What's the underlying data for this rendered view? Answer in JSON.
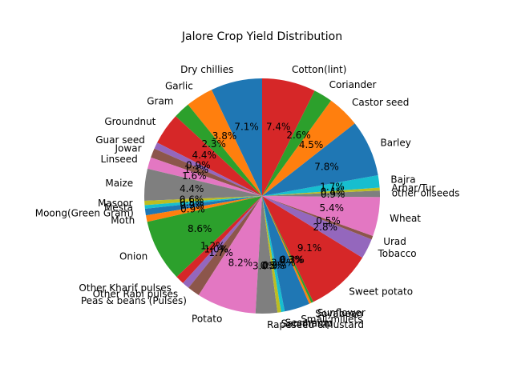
{
  "chart_data": {
    "type": "pie",
    "title": "Jalore Crop Yield Distribution",
    "start_angle_deg": 90,
    "direction": "counterclockwise",
    "palette": [
      "#1f77b4",
      "#ff7f0e",
      "#2ca02c",
      "#d62728",
      "#9467bd",
      "#8c564b",
      "#e377c2",
      "#7f7f7f",
      "#bcbd22",
      "#17becf"
    ],
    "slices": [
      {
        "label": "Dry chillies",
        "value": 7.1,
        "pct_label": "7.1%"
      },
      {
        "label": "Garlic",
        "value": 3.8,
        "pct_label": "3.8%"
      },
      {
        "label": "Gram",
        "value": 2.3,
        "pct_label": "2.3%"
      },
      {
        "label": "Groundnut",
        "value": 4.4,
        "pct_label": "4.4%"
      },
      {
        "label": "Guar seed",
        "value": 0.9,
        "pct_label": "0.9%"
      },
      {
        "label": "Jowar",
        "value": 1.3,
        "pct_label": "1.3%"
      },
      {
        "label": "Linseed",
        "value": 1.6,
        "pct_label": "1.6%"
      },
      {
        "label": "Maize",
        "value": 4.4,
        "pct_label": "4.4%"
      },
      {
        "label": "Masoor",
        "value": 0.6,
        "pct_label": "0.6%"
      },
      {
        "label": "Mesta",
        "value": 0.5,
        "pct_label": "0.5%"
      },
      {
        "label": "Moong(Green Gram)",
        "value": 0.9,
        "pct_label": "0.9%"
      },
      {
        "label": "Moth",
        "value": 0.9,
        "pct_label": "0.9%"
      },
      {
        "label": "Onion",
        "value": 8.6,
        "pct_label": "8.6%"
      },
      {
        "label": "Other Kharif pulses",
        "value": 1.2,
        "pct_label": "1.2%"
      },
      {
        "label": "Other Rabi pulses",
        "value": 1.0,
        "pct_label": "1.0%"
      },
      {
        "label": "Peas & beans (Pulses)",
        "value": 1.7,
        "pct_label": "1.7%"
      },
      {
        "label": "Potato",
        "value": 8.2,
        "pct_label": "8.2%"
      },
      {
        "label": "Rapeseed &Mustard",
        "value": 3.0,
        "pct_label": "3.0%"
      },
      {
        "label": "Sannhamp",
        "value": 0.5,
        "pct_label": "0.5%"
      },
      {
        "label": "Sesamum",
        "value": 0.5,
        "pct_label": "0.5%"
      },
      {
        "label": "Small millets",
        "value": 3.5,
        "pct_label": "3.5%"
      },
      {
        "label": "Soyabean",
        "value": 0.3,
        "pct_label": "0.3%"
      },
      {
        "label": "Sunflower",
        "value": 0.3,
        "pct_label": "0.3%"
      },
      {
        "label": "Sweet potato",
        "value": 9.1,
        "pct_label": "9.1%"
      },
      {
        "label": "Tobacco",
        "value": 2.8,
        "pct_label": "2.8%"
      },
      {
        "label": "Urad",
        "value": 0.5,
        "pct_label": "0.5%"
      },
      {
        "label": "Wheat",
        "value": 5.4,
        "pct_label": "5.4%"
      },
      {
        "label": "other oilseeds",
        "value": 0.9,
        "pct_label": "0.9%"
      },
      {
        "label": "Arhar/Tur",
        "value": 0.4,
        "pct_label": "0.4%"
      },
      {
        "label": "Bajra",
        "value": 1.7,
        "pct_label": "1.7%"
      },
      {
        "label": "Barley",
        "value": 7.8,
        "pct_label": "7.8%"
      },
      {
        "label": "Castor seed",
        "value": 4.5,
        "pct_label": "4.5%"
      },
      {
        "label": "Coriander",
        "value": 2.6,
        "pct_label": "2.6%"
      },
      {
        "label": "Cotton(lint)",
        "value": 7.4,
        "pct_label": "7.4%"
      }
    ]
  }
}
